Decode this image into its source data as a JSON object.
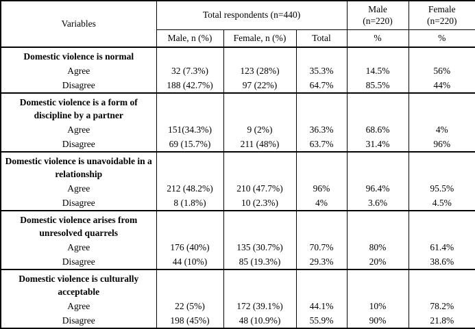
{
  "table": {
    "header": {
      "variables": "Variables",
      "total_respondents": "Total respondents (n=440)",
      "male_group": "Male\n(n=220)",
      "female_group": "Female\n(n=220)",
      "sub_male_n": "Male, n (%)",
      "sub_female_n": "Female, n (%)",
      "sub_total": "Total",
      "sub_male_pct": "%",
      "sub_female_pct": "%"
    },
    "sections": [
      {
        "title": "Domestic violence is normal",
        "rows": [
          {
            "label": "Agree",
            "values": [
              "32 (7.3%)",
              "123 (28%)",
              "35.3%",
              "14.5%",
              "56%"
            ]
          },
          {
            "label": "Disagree",
            "values": [
              "188 (42.7%)",
              "97 (22%)",
              "64.7%",
              "85.5%",
              "44%"
            ]
          }
        ]
      },
      {
        "title": "Domestic violence is a form of discipline by a partner",
        "rows": [
          {
            "label": "Agree",
            "values": [
              "151(34.3%)",
              "9 (2%)",
              "36.3%",
              "68.6%",
              "4%"
            ]
          },
          {
            "label": "Disagree",
            "values": [
              "69 (15.7%)",
              "211 (48%)",
              "63.7%",
              "31.4%",
              "96%"
            ]
          }
        ]
      },
      {
        "title": "Domestic violence is unavoidable in a relationship",
        "rows": [
          {
            "label": "Agree",
            "values": [
              "212 (48.2%)",
              "210 (47.7%)",
              "96%",
              "96.4%",
              "95.5%"
            ]
          },
          {
            "label": "Disagree",
            "values": [
              "8 (1.8%)",
              "10 (2.3%)",
              "4%",
              "3.6%",
              "4.5%"
            ]
          }
        ]
      },
      {
        "title": "Domestic violence arises from unresolved quarrels",
        "rows": [
          {
            "label": "Agree",
            "values": [
              "176 (40%)",
              "135 (30.7%)",
              "70.7%",
              "80%",
              "61.4%"
            ]
          },
          {
            "label": "Disagree",
            "values": [
              "44 (10%)",
              "85 (19.3%)",
              "29.3%",
              "20%",
              "38.6%"
            ]
          }
        ]
      },
      {
        "title": "Domestic violence is culturally acceptable",
        "rows": [
          {
            "label": "Agree",
            "values": [
              "22 (5%)",
              "172 (39.1%)",
              "44.1%",
              "10%",
              "78.2%"
            ]
          },
          {
            "label": "Disagree",
            "values": [
              "198 (45%)",
              "48 (10.9%)",
              "55.9%",
              "90%",
              "21.8%"
            ]
          }
        ]
      }
    ]
  },
  "colors": {
    "border": "#000000",
    "text": "#000000",
    "background": "#ffffff"
  }
}
